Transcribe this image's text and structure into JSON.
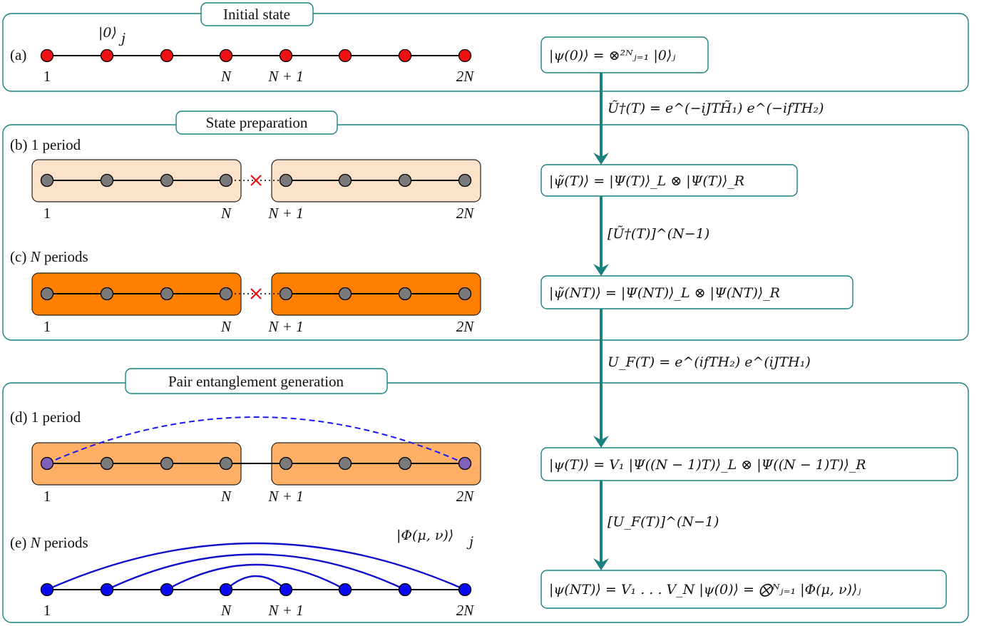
{
  "colors": {
    "teal": "#1a8080",
    "red_node": "#ee1111",
    "gray_node": "#7a7a7a",
    "blue_node": "#0a0aee",
    "purple_node": "#8060b8",
    "light_block": "#fbe2c8",
    "dark_block": "#ff7f00",
    "mid_block": "#ffb066",
    "cross": "#ee1111",
    "pair_arc": "#1010cc",
    "dashed_arc": "#1a1aee"
  },
  "sections": {
    "initial": {
      "title": "Initial state"
    },
    "prep": {
      "title": "State preparation"
    },
    "pair": {
      "title": "Pair entanglement generation"
    }
  },
  "chain_labels": {
    "first": "1",
    "n": "N",
    "n_plus_1": "N + 1",
    "last": "2N"
  },
  "row_labels": {
    "a": "(a)",
    "b": "(b) 1 period",
    "c_prefix": "(c)",
    "c_n": "N",
    "c_suffix": "periods",
    "d": "(d) 1 period",
    "e_prefix": "(e)",
    "e_n": "N",
    "e_suffix": "periods"
  },
  "node_labels": {
    "zero_ket": "|0⟩",
    "zero_ket_sub": "j",
    "phi_ket": "|Φ(μ, ν)⟩",
    "phi_ket_sub": "j"
  },
  "states": {
    "s0": "|ψ(0)⟩ = ⊗²ᴺⱼ₌₁ |0⟩ⱼ",
    "s1": "|ψ̃(T)⟩ = |Ψ(T)⟩_L ⊗ |Ψ(T)⟩_R",
    "s2": "|ψ̃(NT)⟩ = |Ψ(NT)⟩_L ⊗ |Ψ(NT)⟩_R",
    "s3": "|ψ(T)⟩ = V₁ |Ψ((N − 1)T)⟩_L ⊗ |Ψ((N − 1)T)⟩_R",
    "s4": "|ψ(NT)⟩ = V₁ . . . V_N |ψ(0)⟩ = ⨂ᴺⱼ₌₁ |Φ(μ, ν)⟩ⱼ"
  },
  "operators": {
    "op1": "Ũ†(T) = e^(−iJTH̃₁) e^(−ifTH₂)",
    "op2": "[Ũ†(T)]^(N−1)",
    "op3": "U_F(T) = e^(ifTH₂) e^(iJTH₁)",
    "op4": "[U_F(T)]^(N−1)"
  }
}
